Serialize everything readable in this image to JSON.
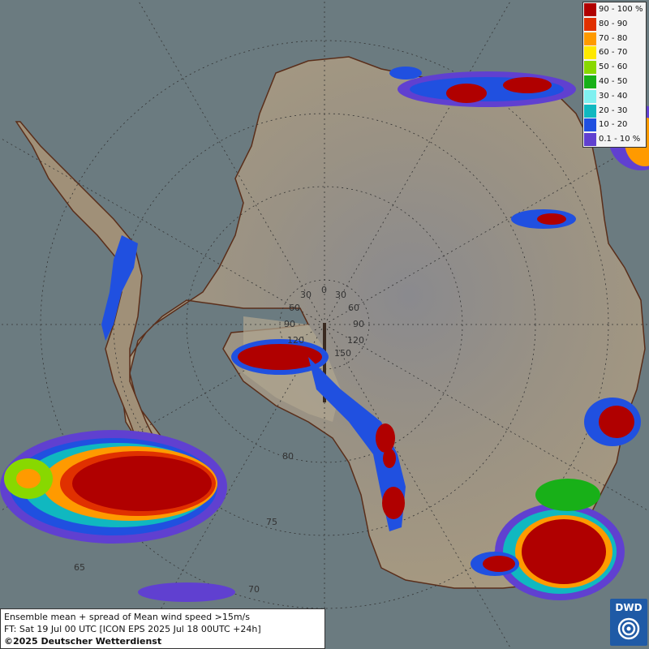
{
  "map": {
    "ocean_color": "#6b7b80",
    "land_color": "#9b8e78",
    "coastline_color": "#5a2e1a",
    "lon_labels": [
      "0",
      "30",
      "30",
      "60",
      "60",
      "90",
      "90",
      "120",
      "120",
      "150"
    ],
    "lat_labels": [
      "80",
      "75",
      "70",
      "65"
    ]
  },
  "legend": {
    "items": [
      {
        "label": "90 - 100 %",
        "color": "#b00000"
      },
      {
        "label": "80 - 90",
        "color": "#e03000"
      },
      {
        "label": "70 - 80",
        "color": "#ff9a00"
      },
      {
        "label": "60 - 70",
        "color": "#ffe800"
      },
      {
        "label": "50 - 60",
        "color": "#88d800"
      },
      {
        "label": "40 - 50",
        "color": "#18b018"
      },
      {
        "label": "30 - 40",
        "color": "#80f0f0"
      },
      {
        "label": "20 - 30",
        "color": "#10b8c0"
      },
      {
        "label": "10 - 20",
        "color": "#2050e0"
      },
      {
        "label": "0.1 - 10 %",
        "color": "#6040d0"
      }
    ]
  },
  "info": {
    "line1": "Ensemble mean + spread of Mean wind speed >15m/s",
    "line2": "FT: Sat 19 Jul 00 UTC [ICON EPS 2025 Jul 18 00UTC +24h]",
    "line3": "©2025 Deutscher Wetterdienst"
  },
  "logo": {
    "text": "DWD"
  }
}
